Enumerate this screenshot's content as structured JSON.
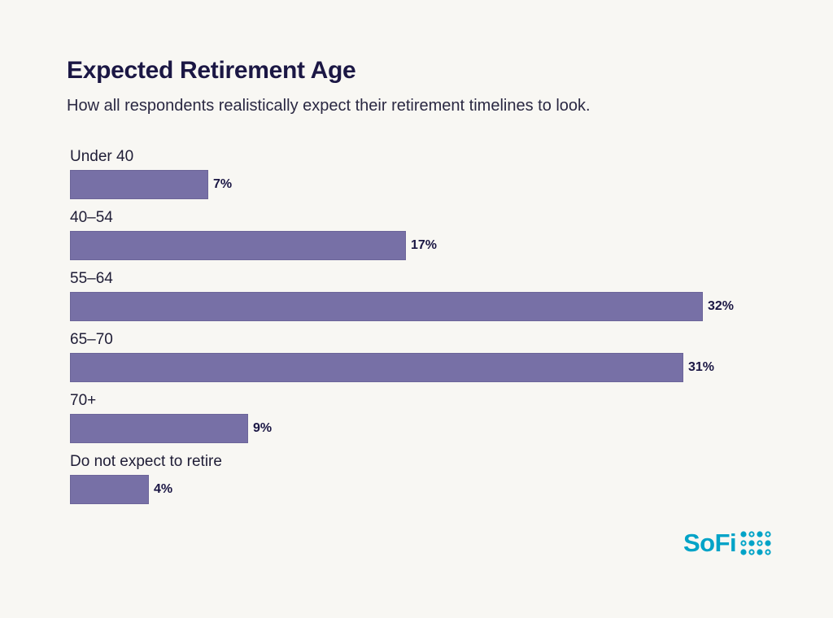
{
  "header": {
    "title": "Expected Retirement Age",
    "subtitle": "How all respondents realistically expect their retirement timelines to look."
  },
  "colors": {
    "bar": "#7770a6",
    "brand": "#00a3c7",
    "background": "#f8f7f3"
  },
  "brand": {
    "name": "SoFi"
  },
  "chart_data": {
    "type": "bar",
    "orientation": "horizontal",
    "categories": [
      "Under 40",
      "40–54",
      "55–64",
      "65–70",
      "70+",
      "Do not expect to retire"
    ],
    "values": [
      7,
      17,
      32,
      31,
      9,
      4
    ],
    "value_labels": [
      "7%",
      "17%",
      "32%",
      "31%",
      "9%",
      "4%"
    ],
    "title": "Expected Retirement Age",
    "subtitle": "How all respondents realistically expect their retirement timelines to look.",
    "xlim": [
      0,
      32
    ],
    "grid": false,
    "legend": "none"
  }
}
